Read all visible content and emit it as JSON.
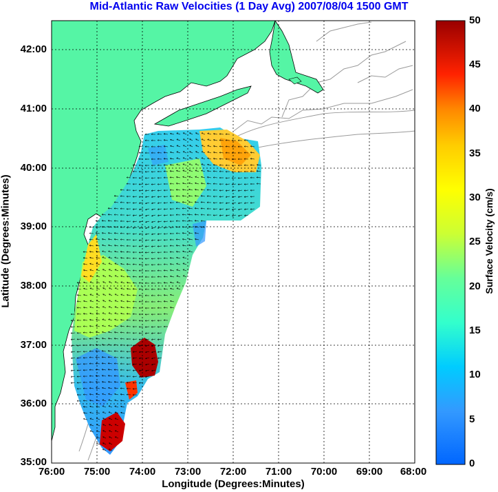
{
  "title": "Mid-Atlantic Raw Velocities (1 Day Avg) 2007/08/04 1500 GMT",
  "xlabel": "Longitude (Degrees:Minutes)",
  "ylabel": "Latitude (Degrees:Minutes)",
  "colorbar_label": "Surface Velocity (cm/s)",
  "x_ticks": [
    "76:00",
    "75:00",
    "74:00",
    "73:00",
    "72:00",
    "71:00",
    "70:00",
    "69:00",
    "68:00"
  ],
  "y_ticks": [
    "42:00",
    "41:00",
    "40:00",
    "39:00",
    "38:00",
    "37:00",
    "36:00",
    "35:00"
  ],
  "colorbar_ticks": [
    "50",
    "45",
    "40",
    "35",
    "30",
    "25",
    "20",
    "15",
    "10",
    "5",
    "0"
  ],
  "colors": {
    "land": "#55f5a5",
    "title": "#0000ee",
    "bathymetry": "#999999"
  },
  "map_extent": {
    "lon": [
      -76,
      -68
    ],
    "lat": [
      35,
      42.5
    ]
  },
  "colorbar_range": [
    0,
    50
  ]
}
